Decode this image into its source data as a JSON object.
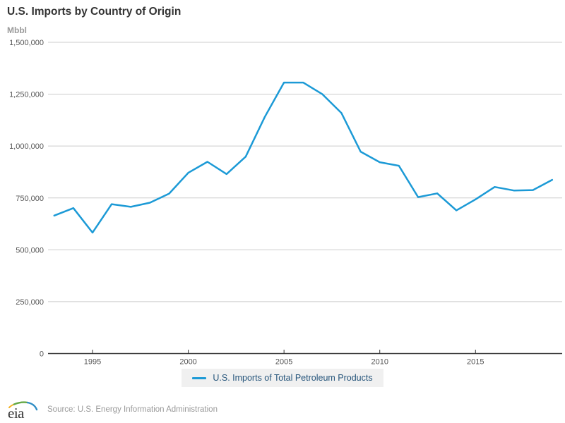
{
  "chart": {
    "title": "U.S. Imports by Country of Origin",
    "unit": "Mbbl",
    "legend": "U.S. Imports of Total Petroleum Products"
  },
  "footer": {
    "logo_text": "eia",
    "source": "Source: U.S. Energy Information Administration"
  },
  "colors": {
    "line": "#1c9ad6",
    "grid": "#cccccc",
    "axis_line": "#333333",
    "axis_text": "#555555",
    "title_text": "#333333",
    "legend_bg": "#f0f0f0",
    "legend_text": "#26557b",
    "muted_text": "#999999",
    "logo_yellow": "#f2b01e",
    "logo_green": "#64a844",
    "logo_blue": "#2f8dc4"
  },
  "chart_data": {
    "type": "line",
    "title": "U.S. Imports by Country of Origin",
    "xlabel": "",
    "ylabel": "Mbbl",
    "ylim": [
      0,
      1500000
    ],
    "grid": true,
    "legend_position": "bottom",
    "x": [
      1993,
      1994,
      1995,
      1996,
      1997,
      1998,
      1999,
      2000,
      2001,
      2002,
      2003,
      2004,
      2005,
      2006,
      2007,
      2008,
      2009,
      2010,
      2011,
      2012,
      2013,
      2014,
      2015,
      2016,
      2017,
      2018,
      2019
    ],
    "series": [
      {
        "name": "U.S. Imports of Total Petroleum Products",
        "values": [
          665000,
          701000,
          583000,
          720000,
          707000,
          727000,
          771000,
          871000,
          924000,
          865000,
          949000,
          1141000,
          1306000,
          1306000,
          1250000,
          1159000,
          973000,
          922000,
          905000,
          754000,
          772000,
          690000,
          743000,
          803000,
          786000,
          788000,
          837000
        ]
      }
    ],
    "y_ticks": [
      {
        "value": 0,
        "label": "0"
      },
      {
        "value": 250000,
        "label": "250,000"
      },
      {
        "value": 500000,
        "label": "500,000"
      },
      {
        "value": 750000,
        "label": "750,000"
      },
      {
        "value": 1000000,
        "label": "1,000,000"
      },
      {
        "value": 1250000,
        "label": "1,250,000"
      },
      {
        "value": 1500000,
        "label": "1,500,000"
      }
    ],
    "x_ticks": [
      {
        "value": 1995,
        "label": "1995"
      },
      {
        "value": 2000,
        "label": "2000"
      },
      {
        "value": 2005,
        "label": "2005"
      },
      {
        "value": 2010,
        "label": "2010"
      },
      {
        "value": 2015,
        "label": "2015"
      }
    ]
  }
}
